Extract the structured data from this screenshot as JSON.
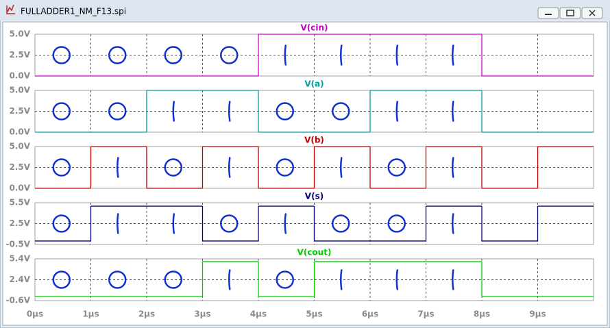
{
  "window": {
    "title": "FULLADDER1_NM_F13.spi"
  },
  "chart_data": [
    {
      "type": "line",
      "title": "V(cin)",
      "color": "#cc00cc",
      "x": [
        0,
        1,
        2,
        3,
        4,
        5,
        6,
        7,
        8,
        9
      ],
      "values": [
        0,
        0,
        0,
        0,
        5,
        5,
        5,
        5,
        0,
        0
      ],
      "xlim": [
        0,
        10
      ],
      "ylim": [
        0,
        5
      ],
      "yticks": [
        {
          "value": 0,
          "label": "0.0V"
        },
        {
          "value": 2.5,
          "label": "2.5V"
        },
        {
          "value": 5,
          "label": "5.0V"
        }
      ],
      "grid": true
    },
    {
      "type": "line",
      "title": "V(a)",
      "color": "#009f9f",
      "x": [
        0,
        1,
        2,
        3,
        4,
        5,
        6,
        7,
        8,
        9
      ],
      "values": [
        0,
        0,
        5,
        5,
        0,
        0,
        5,
        5,
        0,
        0
      ],
      "xlim": [
        0,
        10
      ],
      "ylim": [
        0,
        5
      ],
      "yticks": [
        {
          "value": 0,
          "label": "0.0V"
        },
        {
          "value": 2.5,
          "label": "2.5V"
        },
        {
          "value": 5,
          "label": "5.0V"
        }
      ],
      "grid": true
    },
    {
      "type": "line",
      "title": "V(b)",
      "color": "#c00000",
      "x": [
        0,
        1,
        2,
        3,
        4,
        5,
        6,
        7,
        8,
        9
      ],
      "values": [
        0,
        5,
        0,
        5,
        0,
        5,
        0,
        5,
        0,
        5
      ],
      "xlim": [
        0,
        10
      ],
      "ylim": [
        0,
        5
      ],
      "yticks": [
        {
          "value": 0,
          "label": "0.0V"
        },
        {
          "value": 2.5,
          "label": "2.5V"
        },
        {
          "value": 5,
          "label": "5.0V"
        }
      ],
      "grid": true
    },
    {
      "type": "line",
      "title": "V(s)",
      "color": "#000080",
      "x": [
        0,
        1,
        2,
        3,
        4,
        5,
        6,
        7,
        8,
        9
      ],
      "values": [
        0,
        5,
        5,
        0,
        5,
        0,
        0,
        5,
        0,
        5
      ],
      "xlim": [
        0,
        10
      ],
      "ylim": [
        -0.5,
        5.5
      ],
      "yticks": [
        {
          "value": -0.5,
          "label": "-0.5V"
        },
        {
          "value": 2.5,
          "label": "2.5V"
        },
        {
          "value": 5.5,
          "label": "5.5V"
        }
      ],
      "grid": true
    },
    {
      "type": "line",
      "title": "V(cout)",
      "color": "#00cc00",
      "x": [
        0,
        1,
        2,
        3,
        4,
        5,
        6,
        7,
        8,
        9
      ],
      "values": [
        0,
        0,
        0,
        5,
        0,
        5,
        5,
        5,
        0,
        0
      ],
      "xlim": [
        0,
        10
      ],
      "ylim": [
        -0.6,
        5.4
      ],
      "yticks": [
        {
          "value": -0.6,
          "label": "-0.6V"
        },
        {
          "value": 2.4,
          "label": "2.4V"
        },
        {
          "value": 5.4,
          "label": "5.4V"
        }
      ],
      "grid": true,
      "xticks": [
        {
          "value": 0,
          "label": "0µs"
        },
        {
          "value": 1,
          "label": "1µs"
        },
        {
          "value": 2,
          "label": "2µs"
        },
        {
          "value": 3,
          "label": "3µs"
        },
        {
          "value": 4,
          "label": "4µs"
        },
        {
          "value": 5,
          "label": "5µs"
        },
        {
          "value": 6,
          "label": "6µs"
        },
        {
          "value": 7,
          "label": "7µs"
        },
        {
          "value": 8,
          "label": "8µs"
        },
        {
          "value": 9,
          "label": "9µs"
        }
      ]
    }
  ]
}
